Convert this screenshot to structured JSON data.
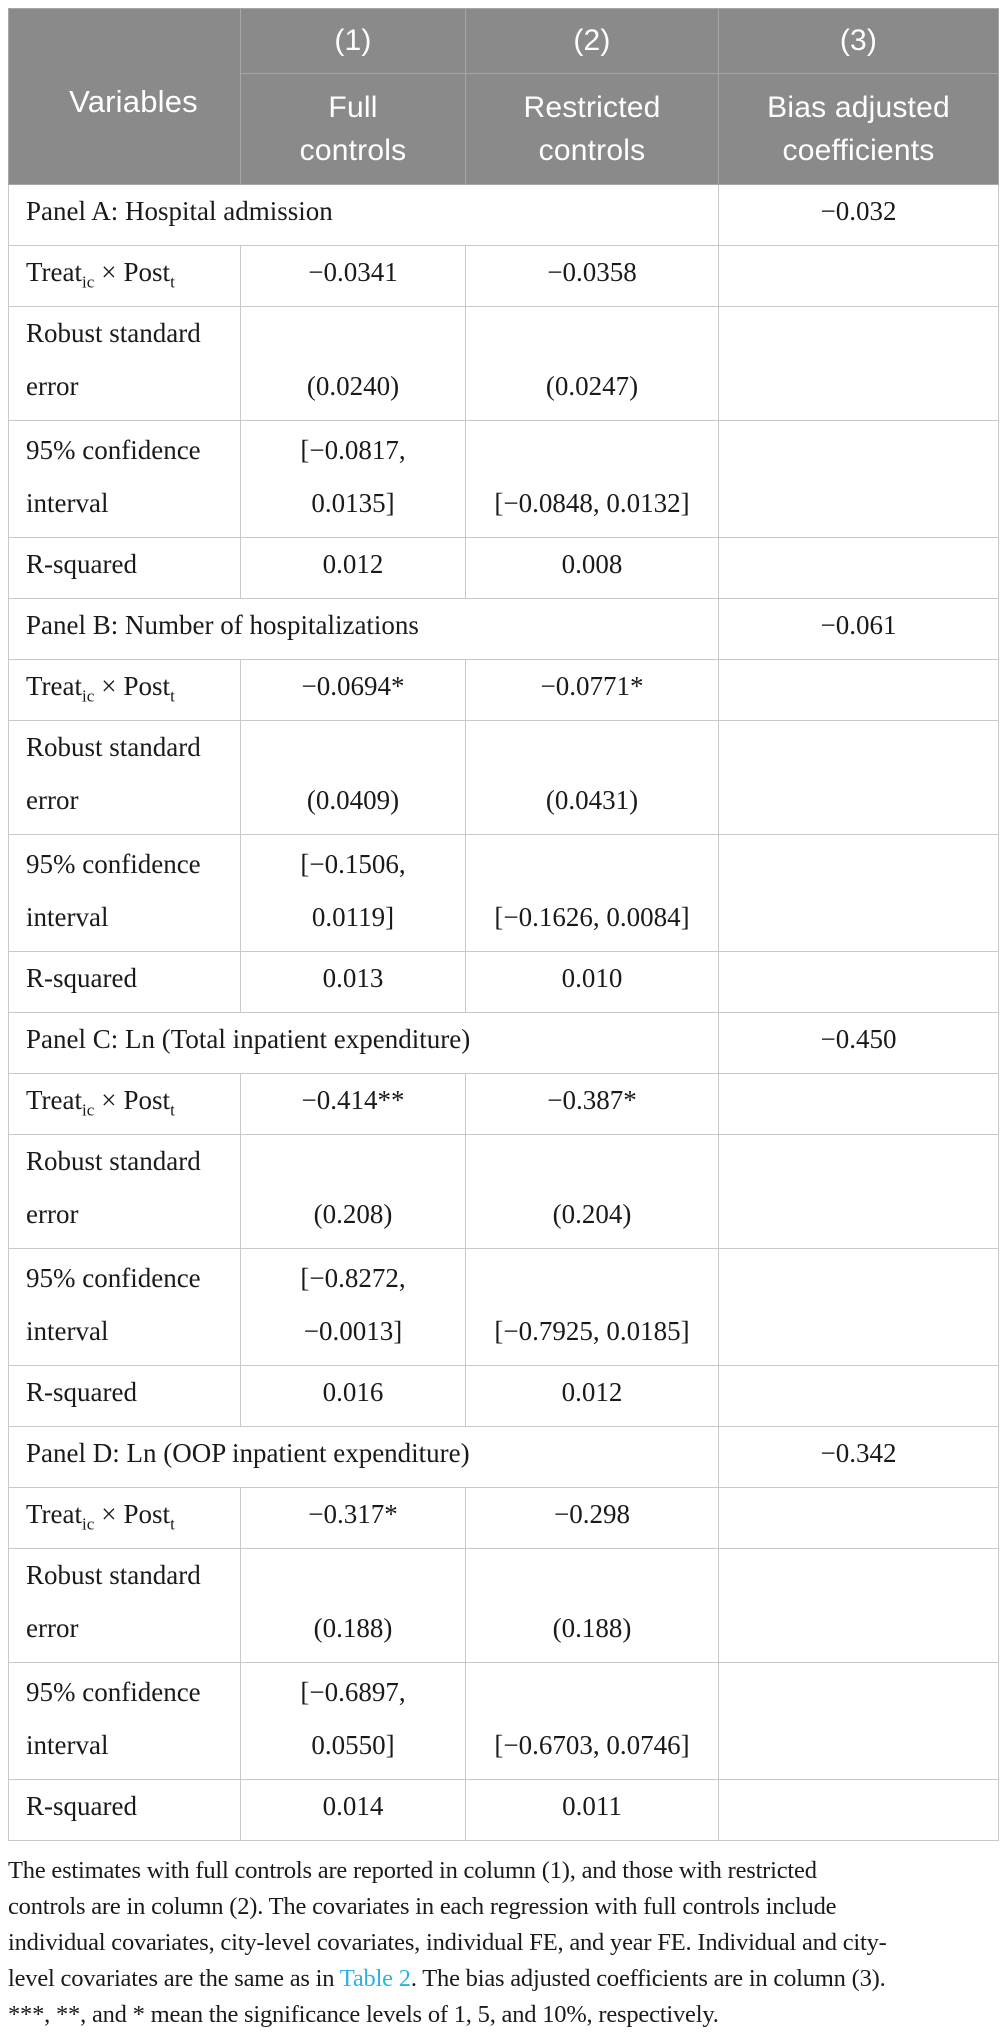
{
  "colors": {
    "header_bg": "#8a8a8a",
    "header_text": "#ffffff",
    "header_border": "#a6a6a6",
    "body_border": "#c9c9c9",
    "text": "#1a1a1a",
    "link": "#29b4e3"
  },
  "header": {
    "col0": "Variables",
    "cols": [
      {
        "num": "(1)",
        "label_lines": [
          "Full",
          "controls"
        ]
      },
      {
        "num": "(2)",
        "label_lines": [
          "Restricted",
          "controls"
        ]
      },
      {
        "num": "(3)",
        "label_lines": [
          "Bias adjusted",
          "coefficients"
        ]
      }
    ]
  },
  "labels": {
    "treat": {
      "base1": "Treat",
      "sub1": "ic",
      "times": "×",
      "base2": "Post",
      "sub2": "t"
    },
    "robust": [
      "Robust standard",
      "error"
    ],
    "ci": [
      "95% confidence",
      "interval"
    ],
    "rsq": "R-squared"
  },
  "panels": [
    {
      "title": "Panel A: Hospital admission",
      "bias_adjusted": "−0.032",
      "treat": [
        "−0.0341",
        "−0.0358"
      ],
      "robust": [
        "(0.0240)",
        "(0.0247)"
      ],
      "ci": {
        "c1a": "[−0.0817,",
        "c1b": "0.0135]",
        "c2": "[−0.0848, 0.0132]"
      },
      "rsq": [
        "0.012",
        "0.008"
      ]
    },
    {
      "title": "Panel B: Number of hospitalizations",
      "bias_adjusted": "−0.061",
      "treat": [
        "−0.0694*",
        "−0.0771*"
      ],
      "robust": [
        "(0.0409)",
        "(0.0431)"
      ],
      "ci": {
        "c1a": "[−0.1506,",
        "c1b": "0.0119]",
        "c2": "[−0.1626, 0.0084]"
      },
      "rsq": [
        "0.013",
        "0.010"
      ]
    },
    {
      "title": "Panel C: Ln (Total inpatient expenditure)",
      "bias_adjusted": "−0.450",
      "treat": [
        "−0.414**",
        "−0.387*"
      ],
      "robust": [
        "(0.208)",
        "(0.204)"
      ],
      "ci": {
        "c1a": "[−0.8272,",
        "c1b": "−0.0013]",
        "c2": "[−0.7925, 0.0185]"
      },
      "rsq": [
        "0.016",
        "0.012"
      ]
    },
    {
      "title": "Panel D: Ln (OOP inpatient expenditure)",
      "bias_adjusted": "−0.342",
      "treat": [
        "−0.317*",
        "−0.298"
      ],
      "robust": [
        "(0.188)",
        "(0.188)"
      ],
      "ci": {
        "c1a": "[−0.6897,",
        "c1b": "0.0550]",
        "c2": "[−0.6703, 0.0746]"
      },
      "rsq": [
        "0.014",
        "0.011"
      ]
    }
  ],
  "footnote": {
    "lines": [
      "The estimates with full controls are reported in column (1), and those with restricted",
      "controls are in column (2). The covariates in each regression with full controls include",
      "individual covariates, city-level covariates, individual FE, and year FE. Individual and city-",
      {
        "pre": "level covariates are the same as in ",
        "link": "Table 2",
        "post": ". The bias adjusted coefficients are in column (3)."
      },
      "***, **, and * mean the significance levels of 1, 5, and 10%, respectively."
    ]
  }
}
